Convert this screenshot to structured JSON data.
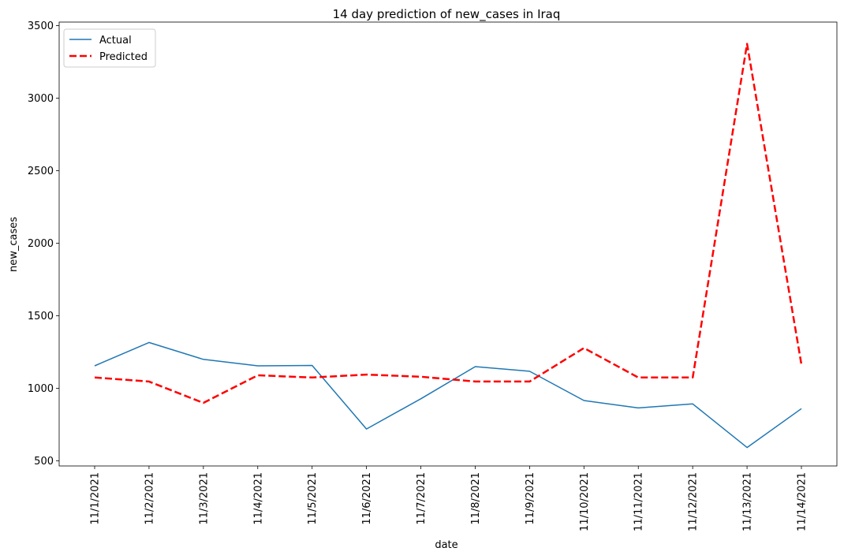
{
  "chart_data": {
    "type": "line",
    "title": "14 day prediction of new_cases in Iraq",
    "xlabel": "date",
    "ylabel": "new_cases",
    "categories": [
      "11/1/2021",
      "11/2/2021",
      "11/3/2021",
      "11/4/2021",
      "11/5/2021",
      "11/6/2021",
      "11/7/2021",
      "11/8/2021",
      "11/9/2021",
      "11/10/2021",
      "11/11/2021",
      "11/12/2021",
      "11/13/2021",
      "11/14/2021"
    ],
    "ylim": [
      465,
      3525
    ],
    "yticks": [
      500,
      1000,
      1500,
      2000,
      2500,
      3000,
      3500
    ],
    "grid": false,
    "legend_position": "top-left",
    "series": [
      {
        "name": "Actual",
        "color": "#1f77b4",
        "style": "solid",
        "values": [
          1155,
          1316,
          1200,
          1155,
          1158,
          720,
          928,
          1150,
          1118,
          916,
          865,
          893,
          592,
          860
        ]
      },
      {
        "name": "Predicted",
        "color": "#ff0000",
        "style": "dashed",
        "values": [
          1075,
          1047,
          900,
          1090,
          1075,
          1095,
          1080,
          1047,
          1047,
          1278,
          1075,
          1075,
          3375,
          1165
        ]
      }
    ]
  }
}
